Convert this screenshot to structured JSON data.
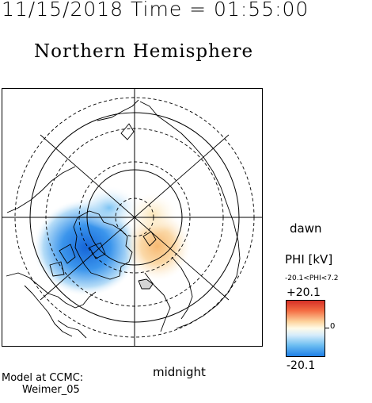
{
  "header": {
    "timestamp": "11/15/2018 Time = 01:55:00",
    "hemisphere": "Northern Hemisphere"
  },
  "map": {
    "labels": {
      "dawn": "dawn",
      "midnight": "midnight"
    }
  },
  "legend": {
    "title": "PHI [kV]",
    "range_text": "-20.1<PHI<7.2",
    "max_label": "+20.1",
    "min_label": "-20.1",
    "zero_label": "0",
    "colors": {
      "high": "#d73027",
      "mid": "#fffbe8",
      "low": "#1e7fe6"
    }
  },
  "footer": {
    "model_line1": "Model at CCMC:",
    "model_line2": "Weimer_05"
  }
}
